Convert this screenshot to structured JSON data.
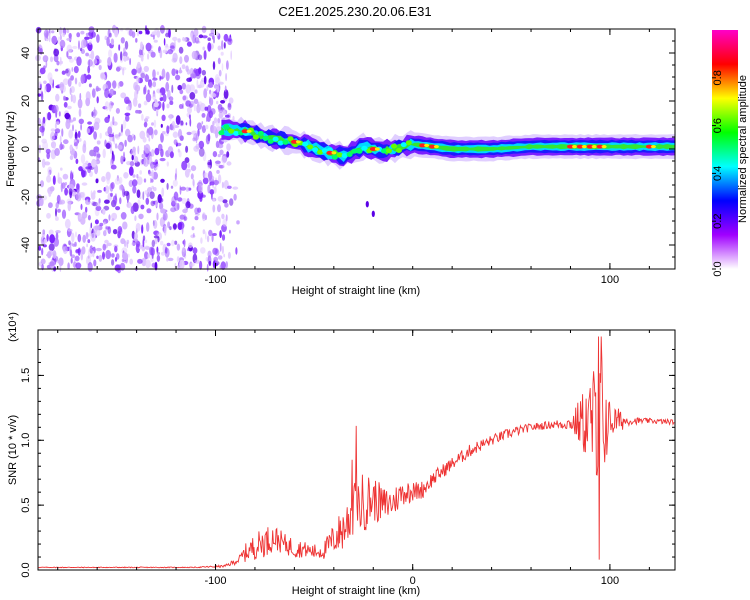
{
  "title": "C2E1.2025.230.20.06.E31",
  "chart_data": [
    {
      "type": "heatmap",
      "xlabel": "Height of straight line (km)",
      "ylabel": "Frequency (Hz)",
      "xlim": [
        -190,
        133
      ],
      "ylim": [
        -50,
        50
      ],
      "xticks": [
        -100,
        100
      ],
      "yticks": [
        -40,
        -20,
        0,
        20,
        40
      ],
      "colorbar": {
        "label": "Normalized spectral amplitude",
        "range": [
          0,
          1
        ],
        "ticks": [
          "0.0",
          "0.2",
          "0.4",
          "0.6",
          "0.8"
        ],
        "tick_values": [
          0,
          0.2,
          0.4,
          0.6,
          0.8
        ],
        "colors": [
          "#ffffff",
          "#a000ff",
          "#0000ff",
          "#00ffff",
          "#00ff00",
          "#ffff00",
          "#ff0000",
          "#ff00c8"
        ]
      },
      "noise_region_x": [
        -190,
        -88
      ],
      "ridge": {
        "x": [
          -97,
          -90,
          -82,
          -75,
          -68,
          -60,
          -52,
          -45,
          -40,
          -35,
          -30,
          -25,
          -20,
          -15,
          -10,
          -5,
          0,
          10,
          20,
          40,
          60,
          80,
          100,
          120,
          133
        ],
        "freq": [
          8,
          8,
          7,
          5,
          4,
          3,
          1,
          -1,
          -2,
          -3,
          -1,
          1,
          0,
          -1,
          0,
          1,
          2,
          1,
          0,
          0,
          1,
          1,
          1,
          1,
          1
        ]
      },
      "outlier_points": [
        {
          "x": -23,
          "freq": -23
        },
        {
          "x": -20,
          "freq": -27
        }
      ],
      "hot_spots_x": [
        -85,
        -60,
        -42,
        -20,
        5,
        10,
        80,
        85,
        90,
        95,
        120
      ]
    },
    {
      "type": "line",
      "xlabel": "Height of straight line (km)",
      "ylabel": "SNR (10 * v/v)",
      "multiplier_label": "(x10⁴)",
      "xlim": [
        -190,
        133
      ],
      "ylim": [
        0,
        1.85
      ],
      "xticks": [
        -100,
        0,
        100
      ],
      "yticks": [
        0,
        0.5,
        1.0,
        1.5
      ],
      "ytick_labels": [
        "0.0",
        "0.5",
        "1.0",
        "1.5"
      ],
      "color": "#ee3333",
      "x": [
        -190,
        -150,
        -110,
        -95,
        -88,
        -85,
        -80,
        -75,
        -70,
        -65,
        -60,
        -55,
        -50,
        -45,
        -40,
        -35,
        -30,
        -25,
        -20,
        -15,
        -10,
        -5,
        0,
        5,
        10,
        20,
        30,
        40,
        50,
        60,
        70,
        80,
        85,
        90,
        95,
        100,
        110,
        120,
        133
      ],
      "y": [
        0.02,
        0.02,
        0.02,
        0.03,
        0.08,
        0.13,
        0.18,
        0.22,
        0.25,
        0.2,
        0.17,
        0.16,
        0.14,
        0.15,
        0.24,
        0.32,
        0.45,
        0.52,
        0.55,
        0.5,
        0.52,
        0.6,
        0.6,
        0.62,
        0.7,
        0.82,
        0.93,
        1.0,
        1.06,
        1.1,
        1.12,
        1.13,
        1.14,
        1.14,
        1.15,
        1.15,
        1.15,
        1.15,
        1.14
      ],
      "spread": [
        0.003,
        0.003,
        0.003,
        0.01,
        0.03,
        0.07,
        0.1,
        0.12,
        0.1,
        0.08,
        0.08,
        0.06,
        0.06,
        0.07,
        0.12,
        0.18,
        0.22,
        0.24,
        0.18,
        0.14,
        0.12,
        0.1,
        0.08,
        0.07,
        0.06,
        0.05,
        0.05,
        0.04,
        0.04,
        0.03,
        0.03,
        0.05,
        0.2,
        0.35,
        0.6,
        0.15,
        0.03,
        0.02,
        0.02
      ]
    }
  ]
}
